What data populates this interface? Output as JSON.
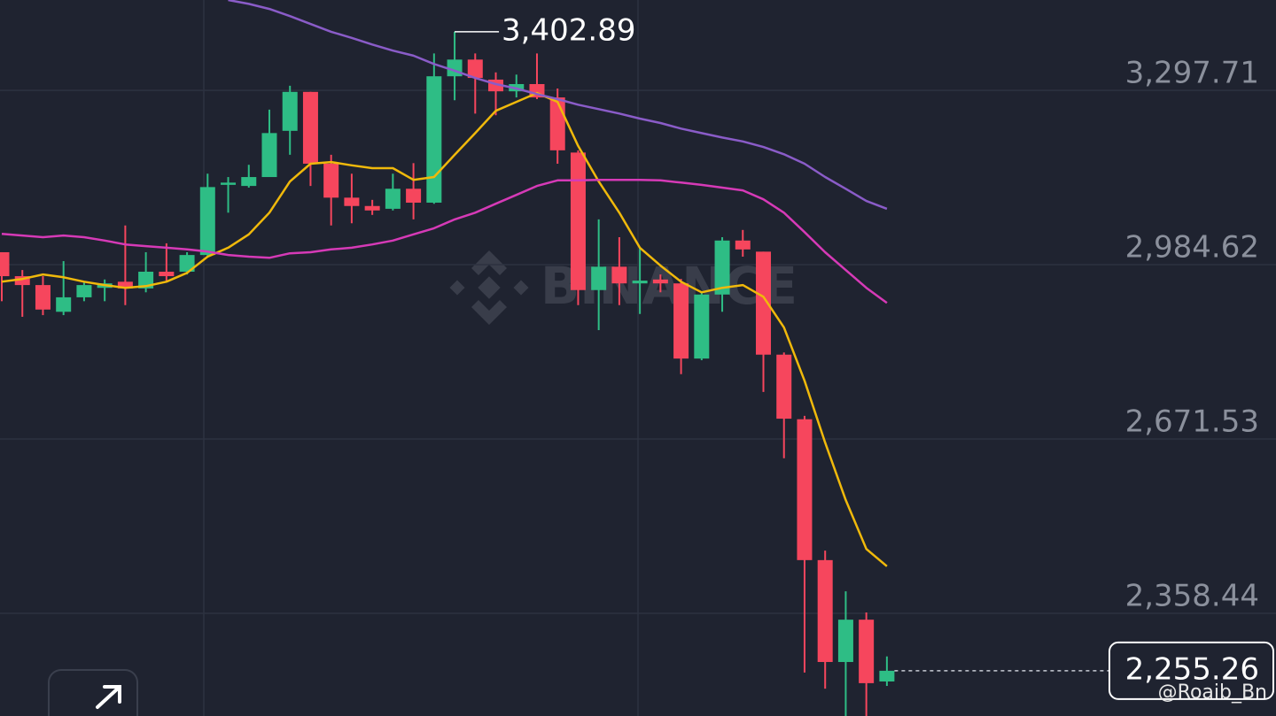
{
  "chart_data": {
    "type": "candlestick",
    "ylim": [
      2174,
      3460
    ],
    "yticks": [
      {
        "value": 3297.71,
        "label": "3,297.71"
      },
      {
        "value": 2984.62,
        "label": "2,984.62"
      },
      {
        "value": 2671.53,
        "label": "2,671.53"
      },
      {
        "value": 2358.44,
        "label": "2,358.44"
      }
    ],
    "grid": true,
    "up_color": "#2ebd85",
    "down_color": "#f6465d",
    "ohlc": {
      "open": [
        3007,
        2964,
        2948,
        2900,
        2926,
        2943,
        2954,
        2942,
        2972,
        2972,
        3002,
        3128,
        3126,
        3142,
        3225,
        3295,
        3166,
        3105,
        3090,
        3085,
        3121,
        3096,
        3323,
        3353,
        3317,
        3296,
        3309,
        3285,
        3186,
        2939,
        2981,
        2951,
        2958,
        2951,
        2816,
        2931,
        3028,
        3008,
        2823,
        2707,
        2454,
        2271,
        2347,
        2236
      ],
      "high": [
        3007,
        2975,
        2964,
        2991,
        2954,
        2958,
        3055,
        3007,
        3023,
        3007,
        3148,
        3142,
        3164,
        3263,
        3306,
        3295,
        3182,
        3148,
        3101,
        3148,
        3167,
        3364,
        3402.89,
        3364,
        3330,
        3326,
        3364,
        3301,
        3190,
        3066,
        3034,
        3015,
        2967,
        2959,
        2935,
        3034,
        3047,
        3008,
        2827,
        2713,
        2471,
        2398,
        2360,
        2281
      ],
      "low": [
        2919,
        2891,
        2894,
        2894,
        2919,
        2919,
        2912,
        2935,
        2954,
        2967,
        2999,
        3078,
        3123,
        3142,
        3182,
        3126,
        3055,
        3059,
        3074,
        3082,
        3066,
        3094,
        3280,
        3256,
        3253,
        3285,
        3282,
        3166,
        2912,
        2867,
        2912,
        2896,
        2935,
        2788,
        2813,
        2900,
        2999,
        2756,
        2637,
        2252,
        2223,
        2170,
        2170,
        2228
      ],
      "close": [
        2964,
        2948,
        2904,
        2926,
        2948,
        2951,
        2942,
        2972,
        2964,
        3002,
        3124,
        3132,
        3142,
        3221,
        3295,
        3166,
        3105,
        3090,
        3082,
        3121,
        3096,
        3323,
        3353,
        3320,
        3296,
        3309,
        3285,
        3190,
        2939,
        2981,
        2951,
        2956,
        2951,
        2816,
        2931,
        3028,
        3012,
        2823,
        2708,
        2454,
        2271,
        2347,
        2233,
        2255.26
      ]
    },
    "lines": [
      {
        "color": "#f0b90b",
        "values": [
          2954,
          2959,
          2967,
          2962,
          2954,
          2948,
          2943,
          2946,
          2954,
          2970,
          2999,
          3015,
          3039,
          3078,
          3134,
          3166,
          3169,
          3163,
          3158,
          3158,
          3137,
          3142,
          3182,
          3221,
          3261,
          3277,
          3293,
          3277,
          3198,
          3134,
          3078,
          3015,
          2983,
          2954,
          2935,
          2943,
          2948,
          2927,
          2872,
          2776,
          2665,
          2562,
          2474,
          2443
        ]
      },
      {
        "color": "#d63ab7",
        "values": [
          3040,
          3037,
          3034,
          3037,
          3034,
          3028,
          3021,
          3018,
          3015,
          3012,
          3008,
          3002,
          2999,
          2997,
          3005,
          3007,
          3012,
          3015,
          3021,
          3028,
          3039,
          3050,
          3066,
          3078,
          3094,
          3110,
          3126,
          3136,
          3136,
          3137,
          3137,
          3137,
          3136,
          3132,
          3128,
          3123,
          3118,
          3102,
          3078,
          3043,
          3007,
          2975,
          2943,
          2916
        ]
      },
      {
        "color": "#8a5cc8",
        "values": [
          null,
          null,
          null,
          null,
          null,
          null,
          null,
          null,
          null,
          null,
          null,
          3460,
          3453,
          3444,
          3431,
          3417,
          3403,
          3392,
          3380,
          3369,
          3360,
          3345,
          3333,
          3320,
          3309,
          3301,
          3291,
          3282,
          3272,
          3264,
          3256,
          3247,
          3239,
          3229,
          3221,
          3213,
          3206,
          3196,
          3183,
          3166,
          3142,
          3121,
          3099,
          3085
        ]
      }
    ],
    "max_marker": {
      "value": 3402.89,
      "label": "3,402.89"
    },
    "last_price": {
      "value": 2255.26,
      "label": "2,255.26"
    },
    "watermark": "BINANCE",
    "credit": "@Roaib_Bn"
  }
}
